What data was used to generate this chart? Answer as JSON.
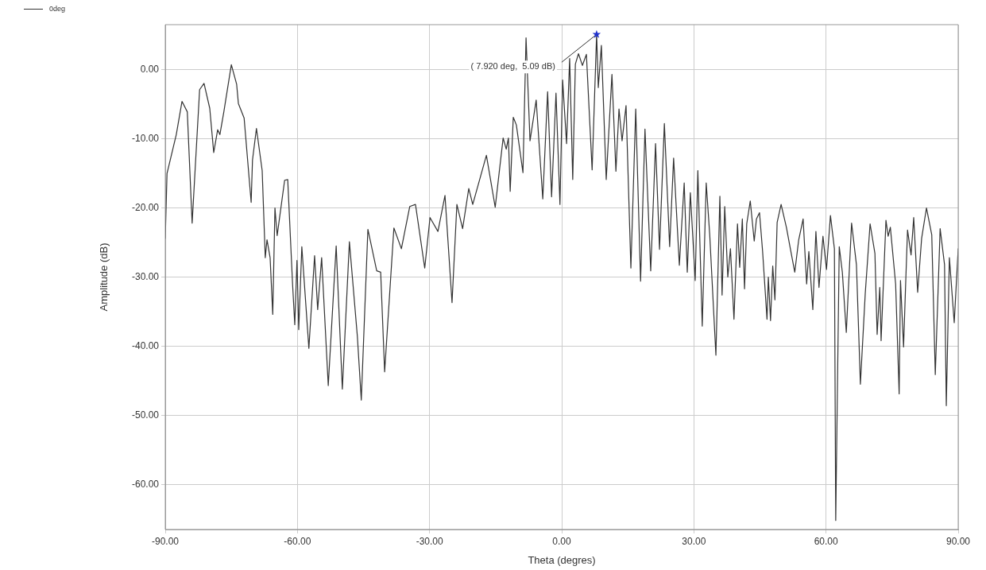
{
  "chart_data": {
    "type": "line",
    "xlabel": "Theta (degres)",
    "ylabel": "Amplitude (dB)",
    "legend": "top left",
    "grid": true,
    "marker": "none",
    "line_style": "solid",
    "xlim": [
      -90,
      90
    ],
    "ylim": [
      -66.5,
      6.5
    ],
    "xticks": [
      {
        "value": -90,
        "label": "-90.00"
      },
      {
        "value": -60,
        "label": "-60.00"
      },
      {
        "value": -30,
        "label": "-30.00"
      },
      {
        "value": 0,
        "label": "0.00"
      },
      {
        "value": 30,
        "label": "30.00"
      },
      {
        "value": 60,
        "label": "60.00"
      },
      {
        "value": 90,
        "label": "90.00"
      }
    ],
    "yticks": [
      {
        "value": -60,
        "label": "-60.00"
      },
      {
        "value": -50,
        "label": "-50.00"
      },
      {
        "value": -40,
        "label": "-40.00"
      },
      {
        "value": -30,
        "label": "-30.00"
      },
      {
        "value": -20,
        "label": "-20.00"
      },
      {
        "value": -10,
        "label": "-10.00"
      },
      {
        "value": 0,
        "label": "0.00"
      }
    ],
    "annotations": [
      {
        "text": "( 7.920 deg,  5.09 dB)",
        "x": 7.92,
        "y": 5.09
      }
    ],
    "series": [
      {
        "name": "0deg",
        "color": "#333333",
        "x": [
          -90,
          -89.6,
          -87.5,
          -86.2,
          -85,
          -83.9,
          -82.2,
          -81.2,
          -79.9,
          -79,
          -78.1,
          -77.6,
          -76.7,
          -75,
          -73.8,
          -73.4,
          -72.1,
          -70.5,
          -70.2,
          -69.3,
          -68,
          -67.3,
          -66.9,
          -66.2,
          -65.6,
          -65.1,
          -64.6,
          -62.9,
          -62.2,
          -61.1,
          -60.6,
          -60.1,
          -59.7,
          -59,
          -57.4,
          -56.1,
          -55.4,
          -54.5,
          -53,
          -51.2,
          -49.8,
          -48.2,
          -46.4,
          -45.5,
          -44,
          -42,
          -41.1,
          -40.2,
          -38.1,
          -36.4,
          -34.5,
          -33.2,
          -31.1,
          -29.9,
          -28.1,
          -26.5,
          -24.9,
          -23.8,
          -22.5,
          -21.1,
          -20.2,
          -17.1,
          -15.1,
          -13.3,
          -12.6,
          -12.1,
          -11.7,
          -11,
          -10.3,
          -8.8,
          -8.1,
          -7.2,
          -5.8,
          -4.3,
          -3.2,
          -2.3,
          -1.3,
          -0.4,
          0.2,
          1.1,
          1.8,
          2.5,
          3.1,
          3.8,
          4.7,
          5.6,
          6.9,
          7.92,
          8.3,
          9,
          10.1,
          11.4,
          12.3,
          13,
          13.7,
          14.6,
          15.7,
          16.8,
          17.9,
          18.9,
          20.2,
          21.3,
          22.2,
          23.3,
          24.5,
          25.4,
          26.7,
          27.8,
          28.5,
          29.2,
          30.3,
          30.9,
          31.9,
          32.8,
          33.6,
          35,
          35.9,
          36.4,
          37,
          37.7,
          38.3,
          39.1,
          39.9,
          40.4,
          41,
          41.5,
          42,
          42.8,
          43.7,
          44.2,
          44.9,
          45.6,
          46.6,
          46.9,
          47.4,
          47.9,
          48.4,
          48.9,
          49.8,
          51,
          51.9,
          52.9,
          53.8,
          54.8,
          55.6,
          56.1,
          57,
          57.7,
          58.4,
          59.3,
          60.1,
          61,
          61.9,
          62.2,
          63,
          63.7,
          64.6,
          65.8,
          66.9,
          67.8,
          68.9,
          70,
          71.1,
          71.6,
          72.2,
          72.5,
          73.6,
          74.1,
          74.6,
          75.8,
          76.6,
          76.9,
          77.6,
          78.1,
          78.5,
          79.3,
          79.9,
          80.8,
          81.7,
          82.8,
          84,
          84.8,
          85.9,
          86.9,
          87.3,
          88,
          89.1,
          90
        ],
        "values": [
          -24.4,
          -15,
          -9.4,
          -4.6,
          -6.1,
          -22.2,
          -2.9,
          -2,
          -5.6,
          -12,
          -8.7,
          -9.4,
          -6.1,
          0.7,
          -2.1,
          -4.9,
          -7,
          -19.2,
          -13.1,
          -8.5,
          -14.6,
          -27.2,
          -24.6,
          -27.2,
          -35.4,
          -20,
          -24,
          -16,
          -15.9,
          -31,
          -36.9,
          -27.6,
          -37.6,
          -25.6,
          -40.3,
          -26.9,
          -34.7,
          -27.2,
          -45.7,
          -25.5,
          -46.2,
          -24.9,
          -38.5,
          -47.8,
          -23.1,
          -29.1,
          -29.3,
          -43.7,
          -22.9,
          -25.9,
          -19.8,
          -19.5,
          -28.7,
          -21.4,
          -23.4,
          -18.2,
          -33.7,
          -19.5,
          -23,
          -17.2,
          -19.5,
          -12.4,
          -19.9,
          -9.9,
          -11.5,
          -9.9,
          -17.6,
          -6.9,
          -8,
          -14.9,
          4.6,
          -10.3,
          -4.4,
          -18.7,
          -3.2,
          -18.4,
          -3.4,
          -19.5,
          -1.5,
          -10.7,
          1.6,
          -15.9,
          0.8,
          2.3,
          0.6,
          2.2,
          -14.5,
          5.1,
          -2.6,
          3.5,
          -15.9,
          -0.7,
          -14.7,
          -5.7,
          -10.3,
          -5.2,
          -28.7,
          -5.7,
          -30.6,
          -8.6,
          -29.1,
          -10.7,
          -26,
          -7.8,
          -25.6,
          -12.8,
          -28.3,
          -16.4,
          -29.3,
          -17.8,
          -30.5,
          -14.6,
          -37.1,
          -16.4,
          -23.9,
          -41.3,
          -18.3,
          -32.6,
          -19.8,
          -30,
          -25.9,
          -36.1,
          -22.3,
          -28.6,
          -21.6,
          -31.7,
          -22.3,
          -19,
          -24.8,
          -21.6,
          -20.7,
          -26.3,
          -36.1,
          -30,
          -36.3,
          -28.4,
          -33.3,
          -22.1,
          -19.5,
          -22.8,
          -25.9,
          -29.3,
          -24.6,
          -21.6,
          -31,
          -26.3,
          -34.7,
          -23.4,
          -31.5,
          -24.1,
          -28.9,
          -21.1,
          -25.9,
          -65.2,
          -25.6,
          -29.3,
          -38,
          -22.2,
          -28.2,
          -45.5,
          -32.4,
          -22.3,
          -26.6,
          -38.3,
          -31.5,
          -39.2,
          -21.8,
          -24.1,
          -22.8,
          -31,
          -46.9,
          -30.5,
          -40.1,
          -30.5,
          -23.2,
          -26.8,
          -21.4,
          -32.2,
          -24.4,
          -20,
          -23.9,
          -44.1,
          -23,
          -28.2,
          -48.6,
          -27.2,
          -36.6,
          -25.9
        ]
      }
    ]
  }
}
